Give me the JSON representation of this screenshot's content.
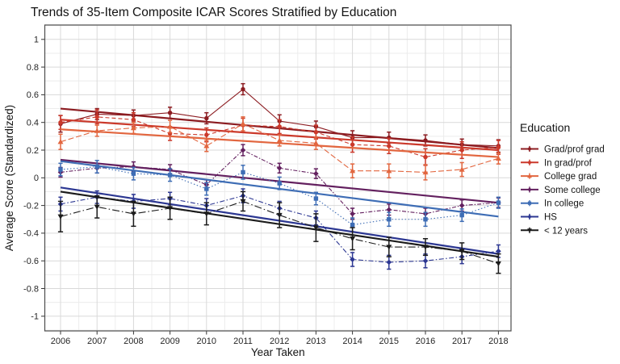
{
  "title": "Trends of 35-Item Composite ICAR Scores Stratified by Education",
  "chart_data": {
    "type": "line",
    "title": "Trends of 35-Item Composite ICAR Scores Stratified by Education",
    "xlabel": "Year Taken",
    "ylabel": "Average Score (Standardized)",
    "legend_title": "Education",
    "legend_position": "right",
    "grid": true,
    "x": [
      2006,
      2007,
      2008,
      2009,
      2010,
      2011,
      2012,
      2013,
      2014,
      2015,
      2016,
      2017,
      2018
    ],
    "x_tick_labels": [
      "2006",
      "2007",
      "2008",
      "2009",
      "2010",
      "2011",
      "2012",
      "2013",
      "2014",
      "2015",
      "2016",
      "2017",
      "2018"
    ],
    "y_ticks": [
      1,
      0.8,
      0.6,
      0.4,
      0.2,
      0,
      -0.2,
      -0.4,
      -0.6,
      -0.8,
      -1
    ],
    "y_tick_labels": [
      "1",
      "0.8",
      "0.6",
      "0.4",
      "0.2",
      "0",
      "-0.2",
      "-0.4",
      "-0.6",
      "-0.8",
      "-1"
    ],
    "ylim": [
      -1.1,
      1.1
    ],
    "series": [
      {
        "name": "Grad/prof grad",
        "color": "#8c1c21",
        "marker": "circle",
        "dash": "",
        "values": [
          0.39,
          0.46,
          0.45,
          0.47,
          0.43,
          0.64,
          0.41,
          0.37,
          0.29,
          0.29,
          0.27,
          0.24,
          0.23
        ],
        "errors": [
          0.06,
          0.04,
          0.04,
          0.04,
          0.04,
          0.04,
          0.045,
          0.04,
          0.05,
          0.04,
          0.04,
          0.04,
          0.045
        ],
        "trend": [
          0.5,
          0.215
        ]
      },
      {
        "name": "In grad/prof",
        "color": "#cb392b",
        "marker": "circle",
        "dash": "5 3",
        "values": [
          0.4,
          0.44,
          0.42,
          0.32,
          0.31,
          0.38,
          0.37,
          0.33,
          0.24,
          0.23,
          0.15,
          0.2,
          0.22
        ],
        "errors": [
          0.05,
          0.05,
          0.05,
          0.05,
          0.05,
          0.05,
          0.05,
          0.05,
          0.055,
          0.055,
          0.06,
          0.06,
          0.05
        ],
        "trend": [
          0.42,
          0.2
        ]
      },
      {
        "name": "College grad",
        "color": "#e2663f",
        "marker": "triangle-up",
        "dash": "7 3",
        "values": [
          0.26,
          0.34,
          0.36,
          0.37,
          0.23,
          0.39,
          0.27,
          0.25,
          0.05,
          0.05,
          0.04,
          0.06,
          0.14
        ],
        "errors": [
          0.055,
          0.04,
          0.04,
          0.045,
          0.04,
          0.05,
          0.04,
          0.045,
          0.05,
          0.05,
          0.055,
          0.05,
          0.04
        ],
        "trend": [
          0.35,
          0.15
        ]
      },
      {
        "name": "Some college",
        "color": "#63205f",
        "marker": "diamond",
        "dash": "5 2 1.5 2",
        "values": [
          0.04,
          0.07,
          0.08,
          0.06,
          -0.05,
          0.2,
          0.07,
          0.03,
          -0.26,
          -0.23,
          -0.26,
          -0.2,
          -0.18
        ],
        "errors": [
          0.035,
          0.035,
          0.035,
          0.035,
          0.035,
          0.04,
          0.035,
          0.035,
          0.04,
          0.04,
          0.04,
          0.04,
          0.035
        ],
        "trend": [
          0.13,
          -0.18
        ]
      },
      {
        "name": "In college",
        "color": "#3e6db5",
        "marker": "square",
        "dash": "1.5 2.5",
        "values": [
          0.06,
          0.08,
          0.03,
          0.02,
          -0.08,
          0.04,
          -0.04,
          -0.15,
          -0.34,
          -0.3,
          -0.3,
          -0.27,
          -0.18
        ],
        "errors": [
          0.045,
          0.045,
          0.045,
          0.045,
          0.045,
          0.05,
          0.045,
          0.045,
          0.05,
          0.05,
          0.05,
          0.045,
          0.04
        ],
        "trend": [
          0.12,
          -0.28
        ]
      },
      {
        "name": "HS",
        "color": "#2c3792",
        "marker": "diamond",
        "dash": "6 2.5 1.5 2.5",
        "values": [
          -0.19,
          -0.14,
          -0.17,
          -0.15,
          -0.2,
          -0.13,
          -0.22,
          -0.29,
          -0.59,
          -0.61,
          -0.6,
          -0.57,
          -0.53
        ],
        "errors": [
          0.05,
          0.045,
          0.05,
          0.045,
          0.05,
          0.05,
          0.05,
          0.05,
          0.05,
          0.05,
          0.05,
          0.05,
          0.045
        ],
        "trend": [
          -0.07,
          -0.55
        ]
      },
      {
        "name": "< 12 years",
        "color": "#1b1b1b",
        "marker": "triangle-down",
        "dash": "9 3 1.5 3",
        "values": [
          -0.28,
          -0.21,
          -0.26,
          -0.22,
          -0.26,
          -0.17,
          -0.27,
          -0.36,
          -0.44,
          -0.5,
          -0.5,
          -0.53,
          -0.62
        ],
        "errors": [
          0.11,
          0.08,
          0.09,
          0.08,
          0.08,
          0.07,
          0.09,
          0.1,
          0.08,
          0.07,
          0.06,
          0.06,
          0.07
        ],
        "trend": [
          -0.1,
          -0.57
        ]
      }
    ]
  },
  "colors": {
    "panel_border": "#4d4d4d",
    "grid_major": "#d9d9d9",
    "grid_minor": "#ececec",
    "tick": "#333333",
    "text": "#141414",
    "tick_text": "#262626"
  }
}
